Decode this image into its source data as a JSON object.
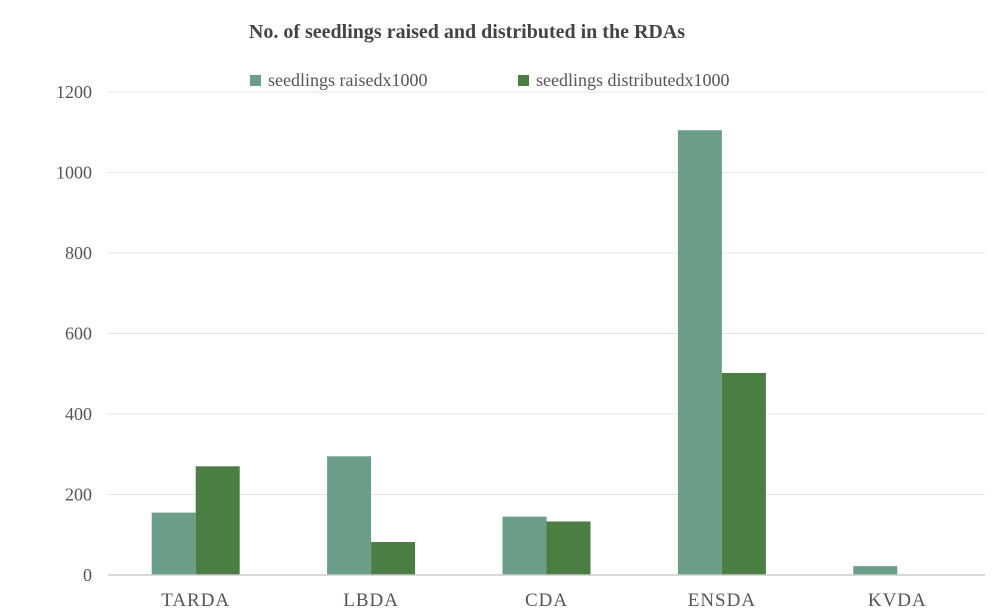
{
  "chart_data": {
    "type": "bar",
    "title": "No. of seedlings raised and distributed in the RDAs",
    "xlabel": "",
    "ylabel": "",
    "categories": [
      "TARDA",
      "LBDA",
      "CDA",
      "ENSDA",
      "KVDA"
    ],
    "series": [
      {
        "name": "seedlings raisedx1000",
        "values": [
          155,
          295,
          145,
          1105,
          22
        ],
        "color": "#6a9e88"
      },
      {
        "name": "seedlings distributedx1000",
        "values": [
          270,
          82,
          133,
          502,
          0
        ],
        "color": "#4a7e42"
      }
    ],
    "ylim": [
      0,
      1200
    ],
    "yticks": [
      0,
      200,
      400,
      600,
      800,
      1000,
      1200
    ],
    "grid": true,
    "legend_position": "top-center"
  }
}
